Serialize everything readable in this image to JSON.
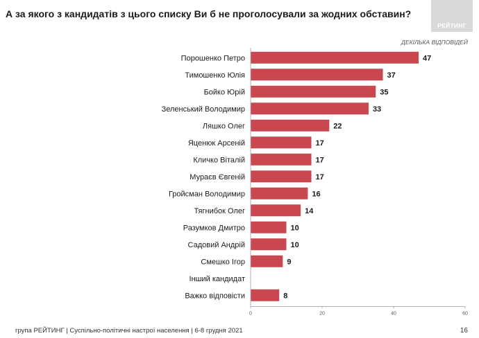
{
  "header": {
    "title": "А за якого з кандидатів з цього списку Ви б не проголосували за жодних обставин?",
    "logo_text": "РЕЙТИНГ",
    "subtitle": "ДЕКІЛЬКА ВІДПОВІДЕЙ"
  },
  "footer": {
    "source": "група РЕЙТИНГ | Суспільно-політичні настрої населення  | 6-8 грудня 2021",
    "page_number": "16"
  },
  "colors": {
    "bar": "#c9474e",
    "axis": "#b0b0b0"
  },
  "chart_data": {
    "type": "bar",
    "orientation": "horizontal",
    "categories": [
      "Порошенко Петро",
      "Тимошенко Юлія",
      "Бойко Юрій",
      "Зеленський Володимир",
      "Ляшко Олег",
      "Яценюк Арсеній",
      "Кличко Віталій",
      "Мураєв Євгеній",
      "Гройсман Володимир",
      "Тягнибок Олег",
      "Разумков Дмитро",
      "Садовий Андрій",
      "Смешко Ігор",
      "Інший кандидат",
      "Важко відповісти"
    ],
    "values": [
      47,
      37,
      35,
      33,
      22,
      17,
      17,
      17,
      16,
      14,
      10,
      10,
      9,
      null,
      8
    ],
    "value_labels": [
      "47",
      "37",
      "35",
      "33",
      "22",
      "17",
      "17",
      "17",
      "16",
      "14",
      "10",
      "10",
      "9",
      "",
      "8"
    ],
    "xlim": [
      0,
      60
    ],
    "xticks": [
      0,
      20,
      40,
      60
    ],
    "xtick_labels": [
      "0",
      "20",
      "40",
      "60"
    ],
    "grid": false,
    "legend": "none"
  }
}
